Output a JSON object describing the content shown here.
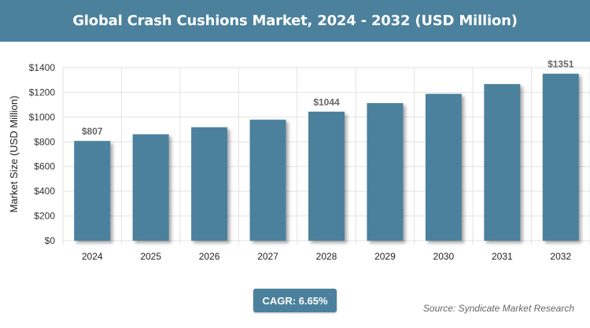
{
  "header": {
    "title": "Global Crash Cushions Market, 2024 - 2032 (USD Million)"
  },
  "colors": {
    "bar": "#4b819c",
    "title_bg": "#4b819c",
    "grid": "#e2e2e2"
  },
  "chart_data": {
    "type": "bar",
    "categories": [
      "2024",
      "2025",
      "2026",
      "2027",
      "2028",
      "2029",
      "2030",
      "2031",
      "2032"
    ],
    "values": [
      807,
      861,
      918,
      979,
      1044,
      1113,
      1188,
      1267,
      1351
    ],
    "data_labels": [
      "$807",
      "",
      "",
      "",
      "$1044",
      "",
      "",
      "",
      "$1351"
    ],
    "ylabel": "Market Size (USD Million)",
    "xlabel": "",
    "ylim": [
      0,
      1400
    ],
    "yticks": [
      0,
      200,
      400,
      600,
      800,
      1000,
      1200,
      1400
    ],
    "ytick_labels": [
      "$0",
      "$200",
      "$400",
      "$600",
      "$800",
      "$1000",
      "$1200",
      "$1400"
    ],
    "grid": true
  },
  "footer": {
    "cagr_label": "CAGR: 6.65%",
    "source": "Source: Syndicate Market Research"
  }
}
